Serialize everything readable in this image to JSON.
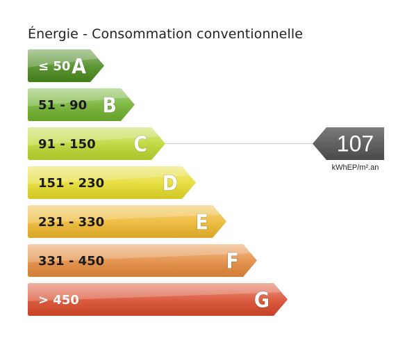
{
  "chart_data": {
    "type": "bar",
    "title": "Énergie - Consommation conventionnelle",
    "bands": [
      {
        "letter": "A",
        "range": "≤ 50",
        "color": "#4a8a1e",
        "text_color": "#ffffff"
      },
      {
        "letter": "B",
        "range": "51 - 90",
        "color": "#6fb02d",
        "text_color": "#1a1a1a"
      },
      {
        "letter": "C",
        "range": "91 - 150",
        "color": "#bcd630",
        "text_color": "#1a1a1a"
      },
      {
        "letter": "D",
        "range": "151 - 230",
        "color": "#e5db2c",
        "text_color": "#1a1a1a"
      },
      {
        "letter": "E",
        "range": "231 - 330",
        "color": "#edb72e",
        "text_color": "#1a1a1a"
      },
      {
        "letter": "F",
        "range": "331 - 450",
        "color": "#e3893c",
        "text_color": "#1a1a1a"
      },
      {
        "letter": "G",
        "range": "> 450",
        "color": "#d84a2a",
        "text_color": "#ffffff"
      }
    ],
    "value": "107",
    "value_band": "C",
    "value_color": "#6b6b6b",
    "unit": "kWhEP/m².an"
  }
}
